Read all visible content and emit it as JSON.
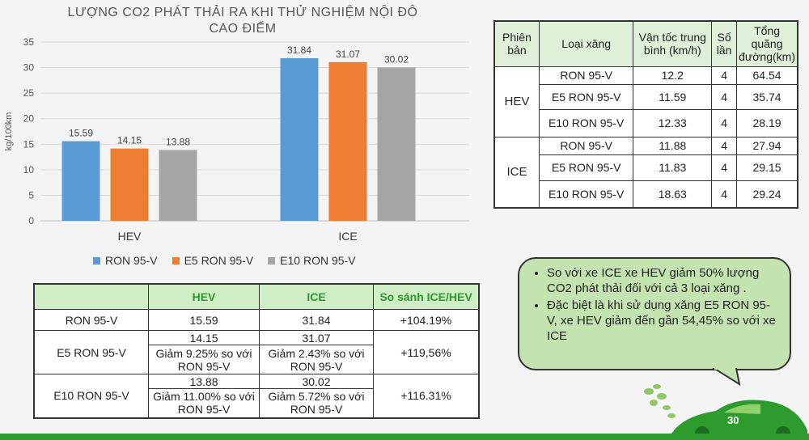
{
  "chart_data": {
    "type": "bar",
    "title_line1": "LƯỢNG CO2 PHÁT THẢI RA KHI THỬ NGHIỆM NỘI ĐÔ",
    "title_line2": "CAO ĐIỂM",
    "ylabel": "kg/100km",
    "ylim": [
      0,
      35
    ],
    "yticks": [
      0,
      5,
      10,
      15,
      20,
      25,
      30,
      35
    ],
    "categories": [
      "HEV",
      "ICE"
    ],
    "series": [
      {
        "name": "RON 95-V",
        "color": "#5b9bd5",
        "values": [
          15.59,
          31.84
        ]
      },
      {
        "name": "E5 RON 95-V",
        "color": "#ed7d31",
        "values": [
          14.15,
          31.07
        ]
      },
      {
        "name": "E10 RON 95-V",
        "color": "#a5a5a5",
        "values": [
          13.88,
          30.02
        ]
      }
    ],
    "grid": true,
    "legend": "bottom"
  },
  "spec_table": {
    "headers": [
      "Phiên bản",
      "Loại xăng",
      "Vận tốc trung bình (km/h)",
      "Số lần",
      "Tổng quãng đường(km)"
    ],
    "groups": [
      {
        "version": "HEV",
        "rows": [
          {
            "fuel": "RON 95-V",
            "speed": "12.2",
            "runs": "4",
            "distance": "64.54"
          },
          {
            "fuel": "E5 RON 95-V",
            "speed": "11.59",
            "runs": "4",
            "distance": "35.74"
          },
          {
            "fuel": "E10 RON 95-V",
            "speed": "12.33",
            "runs": "4",
            "distance": "28.19"
          }
        ]
      },
      {
        "version": "ICE",
        "rows": [
          {
            "fuel": "RON 95-V",
            "speed": "11.88",
            "runs": "4",
            "distance": "27.94"
          },
          {
            "fuel": "E5 RON 95-V",
            "speed": "11.83",
            "runs": "4",
            "distance": "29.15"
          },
          {
            "fuel": "E10 RON 95-V",
            "speed": "18.63",
            "runs": "4",
            "distance": "29.24"
          }
        ]
      }
    ]
  },
  "compare_table": {
    "headers": [
      "",
      "HEV",
      "ICE",
      "So sánh ICE/HEV"
    ],
    "rows": [
      {
        "fuel": "RON 95-V",
        "hev": "15.59",
        "hev_note": "",
        "ice": "31.84",
        "ice_note": "",
        "compare": "+104.19%"
      },
      {
        "fuel": "E5 RON 95-V",
        "hev": "14.15",
        "hev_note": "Giảm 9.25% so với RON 95-V",
        "ice": "31.07",
        "ice_note": "Giảm 2.43% so với RON 95-V",
        "compare": "+119,56%"
      },
      {
        "fuel": "E10 RON 95-V",
        "hev": "13.88",
        "hev_note": "Giảm 11.00% so với RON 95-V",
        "ice": "30.02",
        "ice_note": "Giảm 5.72% so với RON 95-V",
        "compare": "+116.31%"
      }
    ]
  },
  "notes": [
    "So với xe ICE xe HEV giảm 50% lượng CO2 phát thải đối với cả 3 loại xăng .",
    "Đặc biệt là khi sử dụng xăng E5 RON 95-V, xe HEV giảm đến gần 54,45% so với xe ICE"
  ],
  "page_number": "30",
  "colors": {
    "accent_green": "#2e9b2e",
    "bubble": "#c3e3b0",
    "header_green": "#cfeec5"
  }
}
